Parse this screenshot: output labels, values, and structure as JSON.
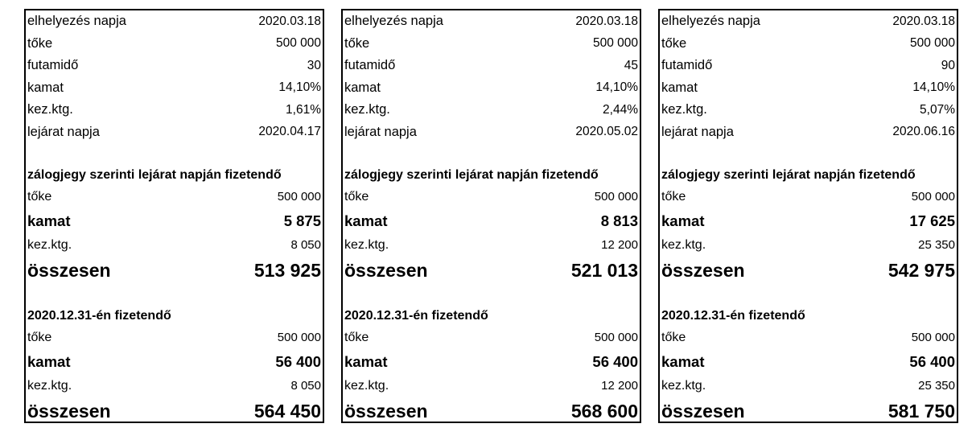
{
  "panels": [
    {
      "elhelyezes_label": "elhelyezés napja",
      "elhelyezes_value": "2020.03.18",
      "toke_label": "tőke",
      "toke_value": "500 000",
      "futamido_label": "futamidő",
      "futamido_value": "30",
      "kamat_label": "kamat",
      "kamat_value": "14,10%",
      "kezktg_label": "kez.ktg.",
      "kezktg_value": "1,61%",
      "lejarat_label": "lejárat napja",
      "lejarat_value": "2020.04.17",
      "section1": {
        "heading": "zálogjegy szerinti lejárat napján fizetendő",
        "toke_label": "tőke",
        "toke_value": "500 000",
        "kamat_label": "kamat",
        "kamat_value": "5 875",
        "kezktg_label": "kez.ktg.",
        "kezktg_value": "8 050",
        "total_label": "összesen",
        "total_value": "513 925"
      },
      "section2": {
        "heading": "2020.12.31-én fizetendő",
        "toke_label": "tőke",
        "toke_value": "500 000",
        "kamat_label": "kamat",
        "kamat_value": "56 400",
        "kezktg_label": "kez.ktg.",
        "kezktg_value": "8 050",
        "total_label": "összesen",
        "total_value": "564 450"
      }
    },
    {
      "elhelyezes_label": "elhelyezés napja",
      "elhelyezes_value": "2020.03.18",
      "toke_label": "tőke",
      "toke_value": "500 000",
      "futamido_label": "futamidő",
      "futamido_value": "45",
      "kamat_label": "kamat",
      "kamat_value": "14,10%",
      "kezktg_label": "kez.ktg.",
      "kezktg_value": "2,44%",
      "lejarat_label": "lejárat napja",
      "lejarat_value": "2020.05.02",
      "section1": {
        "heading": "zálogjegy szerinti lejárat napján fizetendő",
        "toke_label": "tőke",
        "toke_value": "500 000",
        "kamat_label": "kamat",
        "kamat_value": "8 813",
        "kezktg_label": "kez.ktg.",
        "kezktg_value": "12 200",
        "total_label": "összesen",
        "total_value": "521 013"
      },
      "section2": {
        "heading": "2020.12.31-én fizetendő",
        "toke_label": "tőke",
        "toke_value": "500 000",
        "kamat_label": "kamat",
        "kamat_value": "56 400",
        "kezktg_label": "kez.ktg.",
        "kezktg_value": "12 200",
        "total_label": "összesen",
        "total_value": "568 600"
      }
    },
    {
      "elhelyezes_label": "elhelyezés napja",
      "elhelyezes_value": "2020.03.18",
      "toke_label": "tőke",
      "toke_value": "500 000",
      "futamido_label": "futamidő",
      "futamido_value": "90",
      "kamat_label": "kamat",
      "kamat_value": "14,10%",
      "kezktg_label": "kez.ktg.",
      "kezktg_value": "5,07%",
      "lejarat_label": "lejárat napja",
      "lejarat_value": "2020.06.16",
      "section1": {
        "heading": "zálogjegy szerinti lejárat napján fizetendő",
        "toke_label": "tőke",
        "toke_value": "500 000",
        "kamat_label": "kamat",
        "kamat_value": "17 625",
        "kezktg_label": "kez.ktg.",
        "kezktg_value": "25 350",
        "total_label": "összesen",
        "total_value": "542 975"
      },
      "section2": {
        "heading": "2020.12.31-én fizetendő",
        "toke_label": "tőke",
        "toke_value": "500 000",
        "kamat_label": "kamat",
        "kamat_value": "56 400",
        "kezktg_label": "kez.ktg.",
        "kezktg_value": "25 350",
        "total_label": "összesen",
        "total_value": "581 750"
      }
    }
  ]
}
